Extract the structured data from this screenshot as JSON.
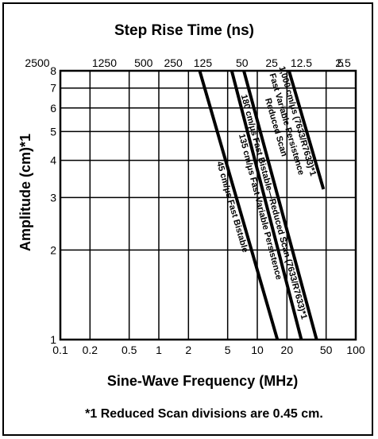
{
  "chart_data": {
    "type": "line",
    "title": "Step Rise Time (ns)",
    "xlabel": "Sine-Wave Frequency (MHz)",
    "ylabel": "Amplitude (cm)*1",
    "x_scale": "log",
    "y_scale": "log",
    "xlim": [
      0.1,
      100
    ],
    "ylim": [
      1,
      8
    ],
    "x_ticks": [
      0.1,
      0.2,
      0.5,
      1,
      2,
      5,
      10,
      20,
      50,
      100
    ],
    "x_tick_labels": [
      "0.1",
      "0.2",
      "0.5",
      "1",
      "2",
      "5",
      "10",
      "20",
      "50",
      "100"
    ],
    "y_ticks": [
      1,
      2,
      3,
      4,
      5,
      6,
      7,
      8
    ],
    "y_tick_labels": [
      "1",
      "2",
      "3",
      "4",
      "5",
      "6",
      "7",
      "8"
    ],
    "top_ticks": [
      {
        "label": "2500",
        "x": 0.14
      },
      {
        "label": "1250",
        "x": 0.28
      },
      {
        "label": "500",
        "x": 0.7
      },
      {
        "label": "250",
        "x": 1.4
      },
      {
        "label": "125",
        "x": 2.8
      },
      {
        "label": "50",
        "x": 7
      },
      {
        "label": "25",
        "x": 14
      },
      {
        "label": "12.5",
        "x": 28
      },
      {
        "label": "5",
        "x": 70
      },
      {
        "label": "2.5",
        "x": 140
      }
    ],
    "grid": true,
    "series": [
      {
        "name": "45 cm/μs Fast Bistable",
        "points": [
          [
            2.6,
            8
          ],
          [
            16,
            1
          ]
        ]
      },
      {
        "name": "135 cm/μs Fast Variable Persistence",
        "points": [
          [
            5.5,
            8
          ],
          [
            28,
            1
          ]
        ]
      },
      {
        "name": "180 cm/μs Fast Bistable—Reduced Scan (7633/R7633)*1",
        "points": [
          [
            7.3,
            8
          ],
          [
            40,
            1
          ]
        ]
      },
      {
        "name": "1,000 cm/μs (7633/R7633)*1 Fast Variable Persistence Reduced Scan",
        "points": [
          [
            21,
            8
          ],
          [
            47,
            3.2
          ]
        ]
      }
    ],
    "footnote": "*1 Reduced Scan divisions are 0.45 cm."
  }
}
